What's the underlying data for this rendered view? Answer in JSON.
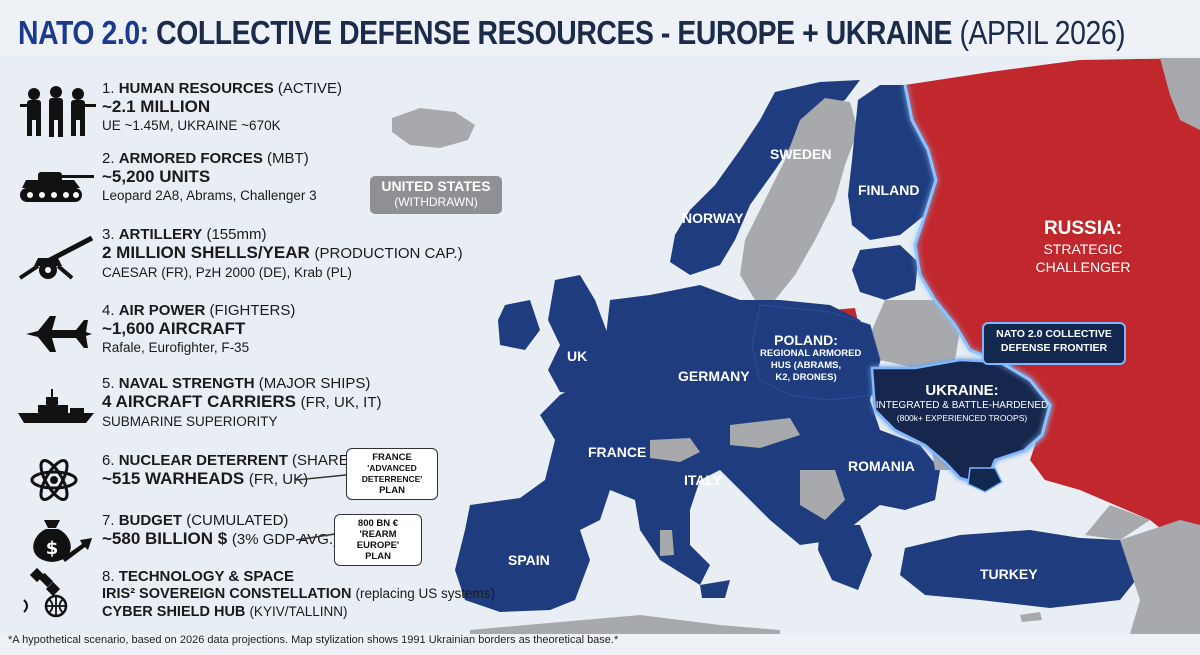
{
  "title": {
    "accent": "NATO 2.0:",
    "main": "COLLECTIVE DEFENSE RESOURCES - EUROPE + UKRAINE",
    "date": "(APRIL 2026)"
  },
  "colors": {
    "nato_blue": "#1e3c7e",
    "russia_red": "#c0282d",
    "neutral_gray": "#a7a9ac",
    "ukraine_dark": "#13284e",
    "sea": "#e8edf3"
  },
  "resources": [
    {
      "icon": "soldiers-icon",
      "number": "1.",
      "label": "HUMAN RESOURCES",
      "qualifier": "(ACTIVE)",
      "value": "~2.1 MILLION",
      "value_note": "",
      "detail": "UE ~1.45M, UKRAINE ~670K"
    },
    {
      "icon": "tank-icon",
      "number": "2.",
      "label": "ARMORED FORCES",
      "qualifier": "(MBT)",
      "value": "~5,200 UNITS",
      "value_note": "",
      "detail": "Leopard 2A8, Abrams, Challenger 3"
    },
    {
      "icon": "artillery-icon",
      "number": "3.",
      "label": "ARTILLERY",
      "qualifier": "(155mm)",
      "value": "2 MILLION SHELLS/YEAR",
      "value_note": "(PRODUCTION CAP.)",
      "detail": "CAESAR (FR), PzH 2000 (DE), Krab (PL)"
    },
    {
      "icon": "fighter-jet-icon",
      "number": "4.",
      "label": "AIR POWER",
      "qualifier": "(FIGHTERS)",
      "value": "~1,600 AIRCRAFT",
      "value_note": "",
      "detail": "Rafale, Eurofighter, F-35"
    },
    {
      "icon": "warship-icon",
      "number": "5.",
      "label": "NAVAL STRENGTH",
      "qualifier": "(MAJOR SHIPS)",
      "value": "4 AIRCRAFT CARRIERS",
      "value_note": "(FR, UK, IT)",
      "detail": "SUBMARINE SUPERIORITY"
    },
    {
      "icon": "atom-icon",
      "number": "6.",
      "label": "NUCLEAR DETERRENT",
      "qualifier": "(SHARED)",
      "value": "~515 WARHEADS",
      "value_note": "(FR, UK)",
      "detail": ""
    },
    {
      "icon": "money-bag-icon",
      "number": "7.",
      "label": "BUDGET",
      "qualifier": "(CUMULATED)",
      "value": "~580 BILLION $",
      "value_note": "(3% GDP AVG.)",
      "detail": ""
    },
    {
      "icon": "satellite-icon",
      "number": "8.",
      "label": "TECHNOLOGY & SPACE",
      "qualifier": "",
      "value": "IRIS² SOVEREIGN CONSTELLATION",
      "value_note": "(replacing US systems)",
      "value2": "CYBER SHIELD HUB",
      "value2_note": "(KYIV/TALLINN)",
      "detail": ""
    }
  ],
  "callouts": {
    "nuclear": {
      "line1": "FRANCE",
      "line2": "'ADVANCED DETERRENCE'",
      "line3": "PLAN"
    },
    "budget": {
      "line1": "800 BN €",
      "line2": "'REARM EUROPE'",
      "line3": "PLAN"
    }
  },
  "map_labels": {
    "us": {
      "name": "UNITED STATES",
      "status": "(WITHDRAWN)"
    },
    "sweden": "SWEDEN",
    "finland": "FINLAND",
    "norway": "NORWAY",
    "uk": "UK",
    "germany": "GERMANY",
    "france": "FRANCE",
    "italy": "ITALY",
    "spain": "SPAIN",
    "romania": "ROMANIA",
    "turkey": "TURKEY",
    "poland": {
      "name": "POLAND:",
      "line2": "REGIONAL ARMORED",
      "line3": "HUS (ABRAMS,",
      "line4": "K2, DRONES)"
    },
    "ukraine": {
      "name": "UKRAINE:",
      "line2": "INTEGRATED & BATTLE-HARDENED",
      "line3": "(800k+ EXPERIENCED TROOPS)"
    },
    "russia": {
      "name": "RUSSIA:",
      "line2": "STRATEGIC",
      "line3": "CHALLENGER"
    },
    "frontier": {
      "line1": "NATO 2.0 COLLECTIVE",
      "line2": "DEFENSE FRONTIER"
    }
  },
  "footer": "*A hypothetical scenario, based on 2026 data projections. Map stylization shows 1991 Ukrainian borders as theoretical base.*"
}
